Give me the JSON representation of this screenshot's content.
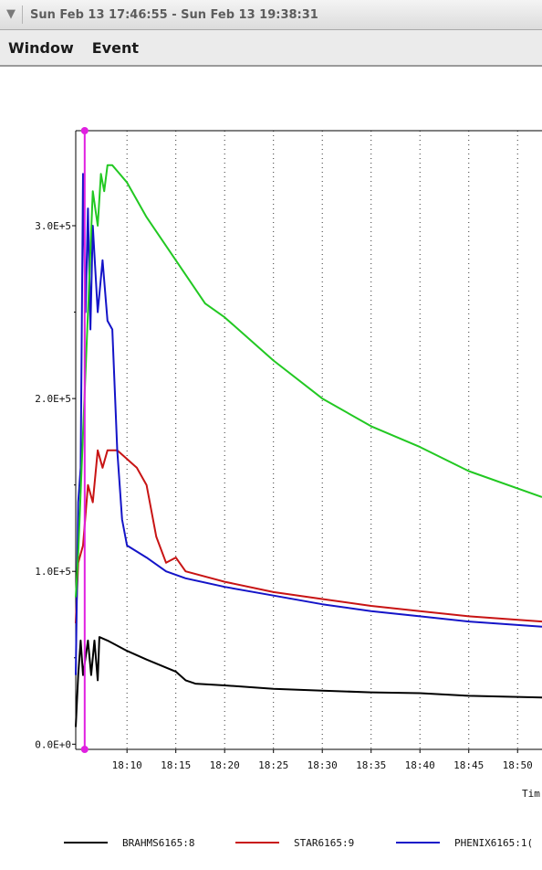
{
  "window": {
    "title": "Sun Feb 13 17:46:55 - Sun Feb 13 19:38:31",
    "collapse_icon": "chevron-down-icon"
  },
  "menu": {
    "items": [
      "Window",
      "Event"
    ]
  },
  "chart_data": {
    "type": "line",
    "xlabel": "Tim",
    "ylabel": "",
    "x_tick_labels": [
      "18:10",
      "18:15",
      "18:20",
      "18:25",
      "18:30",
      "18:35",
      "18:40",
      "18:45",
      "18:50"
    ],
    "x_ticks": [
      "18:10",
      "18:15",
      "18:20",
      "18:25",
      "18:30",
      "18:35",
      "18:40",
      "18:45",
      "18:50"
    ],
    "y_tick_labels": [
      "0.0E+0",
      "1.0E+5",
      "2.0E+5",
      "3.0E+5"
    ],
    "y_ticks": [
      0,
      100000,
      200000,
      300000
    ],
    "xlim": [
      "18:04:45",
      "18:52:30"
    ],
    "ylim": [
      -3000,
      355000
    ],
    "grid": "vertical dotted lines at x ticks",
    "legend_position": "bottom",
    "cursor_marker": {
      "x": "18:05:40",
      "color": "#e020e0"
    },
    "series": [
      {
        "name": "BRAHMS6165:8",
        "color": "#000000",
        "points": [
          [
            "18:04:45",
            10000
          ],
          [
            "18:05:00",
            40000
          ],
          [
            "18:05:15",
            60000
          ],
          [
            "18:05:30",
            40000
          ],
          [
            "18:06:00",
            60000
          ],
          [
            "18:06:20",
            40000
          ],
          [
            "18:06:40",
            60000
          ],
          [
            "18:07:00",
            37000
          ],
          [
            "18:07:10",
            62000
          ],
          [
            "18:08:00",
            60000
          ],
          [
            "18:10:00",
            54000
          ],
          [
            "18:12:00",
            49000
          ],
          [
            "18:15:00",
            42000
          ],
          [
            "18:16:00",
            37000
          ],
          [
            "18:17:00",
            35000
          ],
          [
            "18:20:00",
            34000
          ],
          [
            "18:25:00",
            32000
          ],
          [
            "18:30:00",
            31000
          ],
          [
            "18:35:00",
            30000
          ],
          [
            "18:40:00",
            29500
          ],
          [
            "18:45:00",
            28000
          ],
          [
            "18:52:30",
            27000
          ]
        ]
      },
      {
        "name": "STAR6165:9",
        "color": "#c81414",
        "points": [
          [
            "18:04:45",
            70000
          ],
          [
            "18:05:00",
            105000
          ],
          [
            "18:05:30",
            115000
          ],
          [
            "18:06:00",
            150000
          ],
          [
            "18:06:30",
            140000
          ],
          [
            "18:07:00",
            170000
          ],
          [
            "18:07:30",
            160000
          ],
          [
            "18:08:00",
            170000
          ],
          [
            "18:09:00",
            170000
          ],
          [
            "18:10:00",
            165000
          ],
          [
            "18:11:00",
            160000
          ],
          [
            "18:12:00",
            150000
          ],
          [
            "18:13:00",
            120000
          ],
          [
            "18:14:00",
            105000
          ],
          [
            "18:15:00",
            108000
          ],
          [
            "18:16:00",
            100000
          ],
          [
            "18:20:00",
            94000
          ],
          [
            "18:25:00",
            88000
          ],
          [
            "18:30:00",
            84000
          ],
          [
            "18:35:00",
            80000
          ],
          [
            "18:40:00",
            77000
          ],
          [
            "18:45:00",
            74000
          ],
          [
            "18:52:30",
            71000
          ]
        ]
      },
      {
        "name": "PHENIX6165:1(",
        "color": "#1414c8",
        "points": [
          [
            "18:04:45",
            40000
          ],
          [
            "18:05:00",
            140000
          ],
          [
            "18:05:15",
            160000
          ],
          [
            "18:05:30",
            330000
          ],
          [
            "18:05:45",
            250000
          ],
          [
            "18:06:00",
            310000
          ],
          [
            "18:06:15",
            240000
          ],
          [
            "18:06:30",
            300000
          ],
          [
            "18:07:00",
            250000
          ],
          [
            "18:07:30",
            280000
          ],
          [
            "18:08:00",
            245000
          ],
          [
            "18:08:30",
            240000
          ],
          [
            "18:09:00",
            170000
          ],
          [
            "18:09:30",
            130000
          ],
          [
            "18:10:00",
            115000
          ],
          [
            "18:12:00",
            108000
          ],
          [
            "18:14:00",
            100000
          ],
          [
            "18:16:00",
            96000
          ],
          [
            "18:20:00",
            91000
          ],
          [
            "18:25:00",
            86000
          ],
          [
            "18:30:00",
            81000
          ],
          [
            "18:35:00",
            77000
          ],
          [
            "18:40:00",
            74000
          ],
          [
            "18:45:00",
            71000
          ],
          [
            "18:52:30",
            68000
          ]
        ]
      },
      {
        "name": "",
        "color": "#22c822",
        "points": [
          [
            "18:04:45",
            85000
          ],
          [
            "18:05:00",
            110000
          ],
          [
            "18:05:30",
            180000
          ],
          [
            "18:06:00",
            250000
          ],
          [
            "18:06:30",
            320000
          ],
          [
            "18:07:00",
            300000
          ],
          [
            "18:07:20",
            330000
          ],
          [
            "18:07:40",
            320000
          ],
          [
            "18:08:00",
            335000
          ],
          [
            "18:08:30",
            335000
          ],
          [
            "18:10:00",
            325000
          ],
          [
            "18:12:00",
            305000
          ],
          [
            "18:15:00",
            280000
          ],
          [
            "18:18:00",
            255000
          ],
          [
            "18:20:00",
            247000
          ],
          [
            "18:25:00",
            222000
          ],
          [
            "18:30:00",
            200000
          ],
          [
            "18:35:00",
            184000
          ],
          [
            "18:40:00",
            172000
          ],
          [
            "18:45:00",
            158000
          ],
          [
            "18:52:30",
            143000
          ]
        ]
      }
    ]
  }
}
